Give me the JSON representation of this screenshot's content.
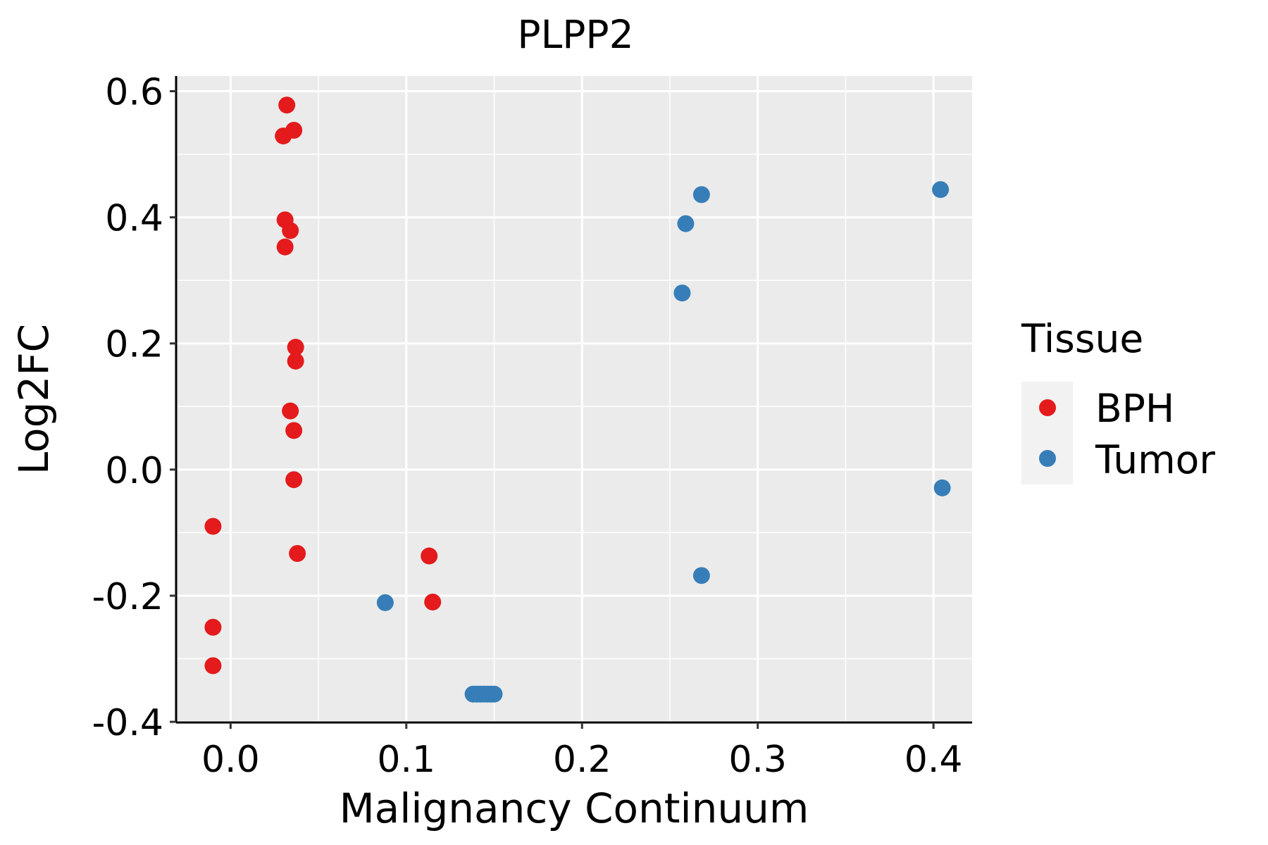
{
  "chart_data": {
    "type": "scatter",
    "title": "PLPP2",
    "xlabel": "Malignancy Continuum",
    "ylabel": "Log2FC",
    "xlim": [
      -0.031,
      0.422
    ],
    "ylim": [
      -0.401,
      0.624
    ],
    "x_ticks": [
      0.0,
      0.1,
      0.2,
      0.3,
      0.4
    ],
    "x_tick_labels": [
      "0.0",
      "0.1",
      "0.2",
      "0.3",
      "0.4"
    ],
    "y_ticks": [
      -0.4,
      -0.2,
      0.0,
      0.2,
      0.4,
      0.6
    ],
    "y_tick_labels": [
      "-0.4",
      "-0.2",
      "0.0",
      "0.2",
      "0.4",
      "0.6"
    ],
    "grid": true,
    "legend": {
      "title": "Tissue",
      "position": "right",
      "entries": [
        {
          "label": "BPH",
          "color": "#E41A1C"
        },
        {
          "label": "Tumor",
          "color": "#377EB8"
        }
      ]
    },
    "series": [
      {
        "name": "BPH",
        "color": "#E41A1C",
        "points": [
          {
            "x": 0.032,
            "y": 0.578
          },
          {
            "x": 0.036,
            "y": 0.538
          },
          {
            "x": 0.03,
            "y": 0.529
          },
          {
            "x": 0.031,
            "y": 0.396
          },
          {
            "x": 0.034,
            "y": 0.379
          },
          {
            "x": 0.031,
            "y": 0.353
          },
          {
            "x": 0.037,
            "y": 0.194
          },
          {
            "x": 0.037,
            "y": 0.172
          },
          {
            "x": 0.034,
            "y": 0.093
          },
          {
            "x": 0.036,
            "y": 0.062
          },
          {
            "x": 0.036,
            "y": -0.016
          },
          {
            "x": 0.038,
            "y": -0.133
          },
          {
            "x": -0.01,
            "y": -0.09
          },
          {
            "x": -0.01,
            "y": -0.25
          },
          {
            "x": -0.01,
            "y": -0.311
          },
          {
            "x": 0.113,
            "y": -0.137
          },
          {
            "x": 0.115,
            "y": -0.21
          }
        ]
      },
      {
        "name": "Tumor",
        "color": "#377EB8",
        "points": [
          {
            "x": 0.268,
            "y": 0.436
          },
          {
            "x": 0.259,
            "y": 0.39
          },
          {
            "x": 0.257,
            "y": 0.28
          },
          {
            "x": 0.404,
            "y": 0.444
          },
          {
            "x": 0.405,
            "y": -0.029
          },
          {
            "x": 0.268,
            "y": -0.168
          },
          {
            "x": 0.088,
            "y": -0.211
          },
          {
            "x": 0.138,
            "y": -0.356
          },
          {
            "x": 0.14,
            "y": -0.356
          },
          {
            "x": 0.142,
            "y": -0.356
          },
          {
            "x": 0.144,
            "y": -0.356
          },
          {
            "x": 0.146,
            "y": -0.356
          },
          {
            "x": 0.148,
            "y": -0.356
          },
          {
            "x": 0.15,
            "y": -0.356
          }
        ]
      }
    ]
  }
}
